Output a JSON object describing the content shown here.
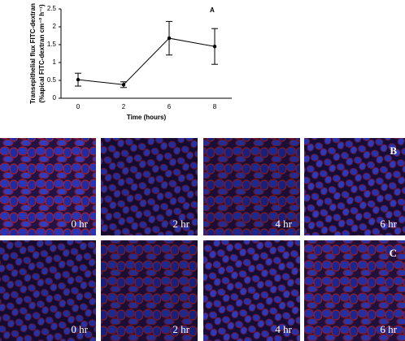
{
  "chart_data": {
    "type": "line",
    "panel_label": "A",
    "x_label": "Time (hours)",
    "y_label": [
      "Transepithelial flux FITC-dextran",
      "(%apical FITC-dextran cm⁻² h⁻¹)"
    ],
    "categories": [
      "0",
      "2",
      "6",
      "8"
    ],
    "values": [
      0.52,
      0.38,
      1.68,
      1.45
    ],
    "errors": [
      0.18,
      0.08,
      0.47,
      0.5
    ],
    "color": "#000000",
    "ylim": [
      0,
      2.5
    ],
    "yticks": [
      0,
      0.5,
      1,
      1.5,
      2,
      2.5
    ]
  },
  "image_rows": [
    {
      "label": "B",
      "captions": [
        "0 hr",
        "2 hr",
        "4 hr",
        "6 hr"
      ]
    },
    {
      "label": "C",
      "captions": [
        "0 hr",
        "2 hr",
        "4 hr",
        "6 hr"
      ]
    }
  ]
}
